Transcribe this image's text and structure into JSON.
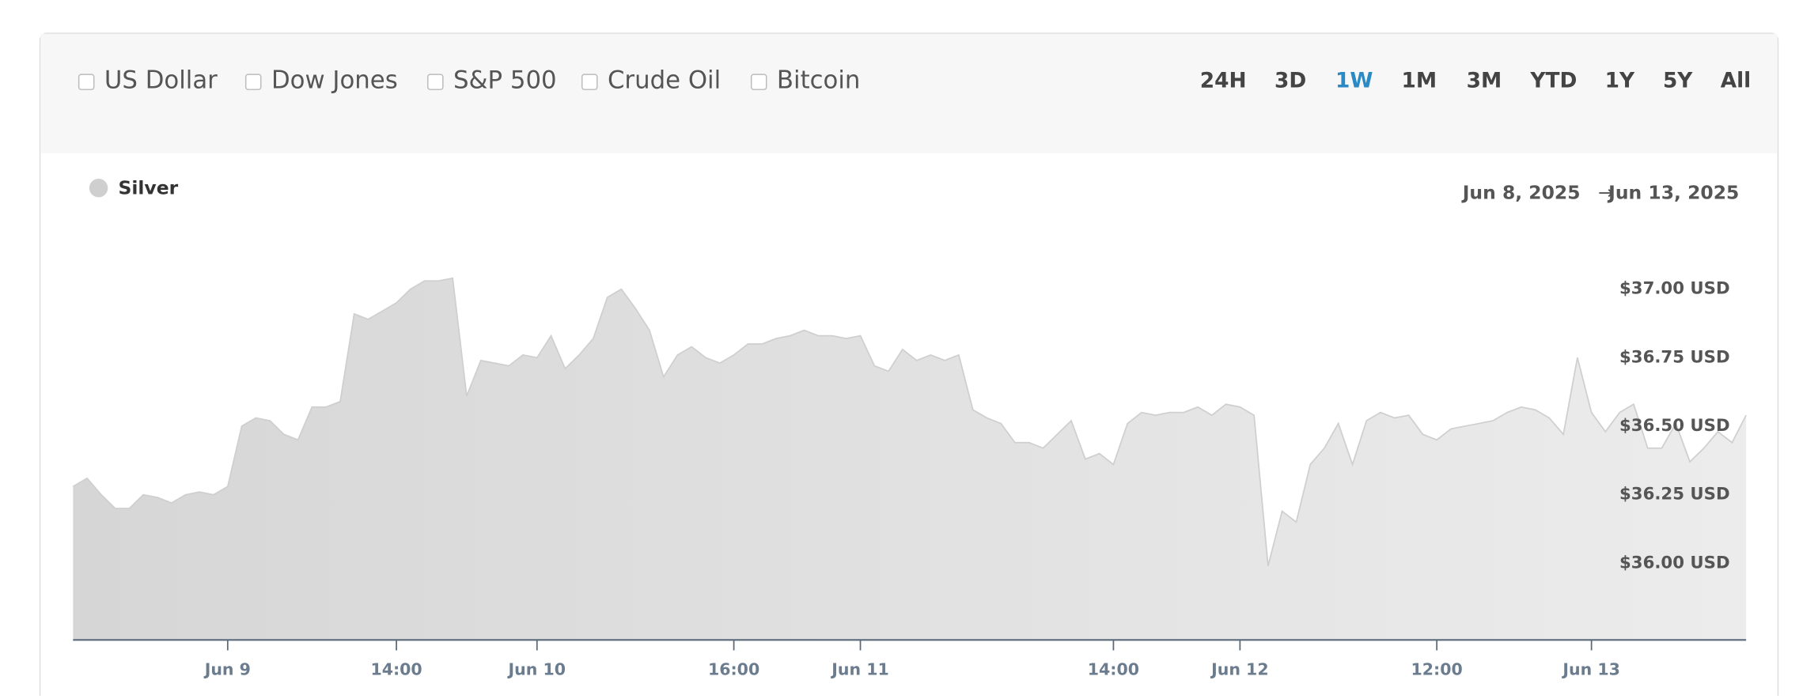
{
  "controls": {
    "comparisons": [
      "US Dollar",
      "Dow Jones",
      "S&P 500",
      "Crude Oil",
      "Bitcoin"
    ],
    "ranges": [
      {
        "label": "24H",
        "active": false
      },
      {
        "label": "3D",
        "active": false
      },
      {
        "label": "1W",
        "active": true
      },
      {
        "label": "1M",
        "active": false
      },
      {
        "label": "3M",
        "active": false
      },
      {
        "label": "YTD",
        "active": false
      },
      {
        "label": "1Y",
        "active": false
      },
      {
        "label": "5Y",
        "active": false
      },
      {
        "label": "All",
        "active": false
      }
    ]
  },
  "date_range": {
    "start": "Jun 8, 2025",
    "arrow": "→",
    "end": "Jun 13, 2025"
  },
  "chart_data": {
    "type": "area",
    "categories": [
      null,
      null,
      null,
      null,
      null,
      null,
      null,
      null,
      null,
      null,
      null,
      "Jun 9",
      null,
      null,
      null,
      null,
      null,
      null,
      null,
      null,
      null,
      null,
      null,
      "14:00",
      null,
      null,
      null,
      null,
      null,
      null,
      null,
      null,
      null,
      "Jun 10",
      null,
      null,
      null,
      null,
      null,
      null,
      null,
      null,
      null,
      null,
      null,
      null,
      null,
      "16:00",
      null,
      null,
      null,
      null,
      null,
      null,
      null,
      null,
      "Jun 11",
      null,
      null,
      null,
      null,
      null,
      null,
      null,
      null,
      null,
      null,
      null,
      null,
      null,
      null,
      null,
      null,
      null,
      "14:00",
      null,
      null,
      null,
      null,
      null,
      null,
      null,
      null,
      "Jun 12",
      null,
      null,
      null,
      null,
      null,
      null,
      null,
      null,
      null,
      null,
      null,
      null,
      null,
      "12:00",
      null,
      null,
      null,
      null,
      null,
      null,
      null,
      null,
      null,
      null,
      "Jun 13",
      null,
      null,
      null,
      null,
      null,
      null,
      null,
      null,
      null,
      null,
      null
    ],
    "series": [
      {
        "name": "Silver",
        "color": "#cfcfcf",
        "values": [
          36.28,
          36.31,
          36.25,
          36.2,
          36.2,
          36.25,
          36.24,
          36.22,
          36.25,
          36.26,
          36.25,
          36.28,
          36.5,
          36.53,
          36.52,
          36.47,
          36.45,
          36.57,
          36.57,
          36.59,
          36.91,
          36.89,
          36.92,
          36.95,
          37.0,
          37.03,
          37.03,
          37.04,
          36.61,
          36.74,
          36.73,
          36.72,
          36.76,
          36.75,
          36.83,
          36.71,
          36.76,
          36.82,
          36.97,
          37.0,
          36.93,
          36.85,
          36.68,
          36.76,
          36.79,
          36.75,
          36.73,
          36.76,
          36.8,
          36.8,
          36.82,
          36.83,
          36.85,
          36.83,
          36.83,
          36.82,
          36.83,
          36.72,
          36.7,
          36.78,
          36.74,
          36.76,
          36.74,
          36.76,
          36.56,
          36.53,
          36.51,
          36.44,
          36.44,
          36.42,
          36.47,
          36.52,
          36.38,
          36.4,
          36.36,
          36.51,
          36.55,
          36.54,
          36.55,
          36.55,
          36.57,
          36.54,
          36.58,
          36.57,
          36.54,
          35.99,
          36.19,
          36.15,
          36.36,
          36.42,
          36.51,
          36.36,
          36.52,
          36.55,
          36.53,
          36.54,
          36.47,
          36.45,
          36.49,
          36.5,
          36.51,
          36.52,
          36.55,
          36.57,
          36.56,
          36.53,
          36.47,
          36.75,
          36.55,
          36.48,
          36.55,
          36.58,
          36.42,
          36.42,
          36.51,
          36.37,
          36.42,
          36.48,
          36.44,
          36.54
        ]
      }
    ],
    "ylim": [
      35.72,
      37.2
    ],
    "yticks": [
      {
        "value": 36,
        "label": "$36.00 USD"
      },
      {
        "value": 36.25,
        "label": "$36.25 USD"
      },
      {
        "value": 36.5,
        "label": "$36.50 USD"
      },
      {
        "value": 36.75,
        "label": "$36.75 USD"
      },
      {
        "value": 37,
        "label": "$37.00 USD"
      }
    ],
    "grid": false
  }
}
